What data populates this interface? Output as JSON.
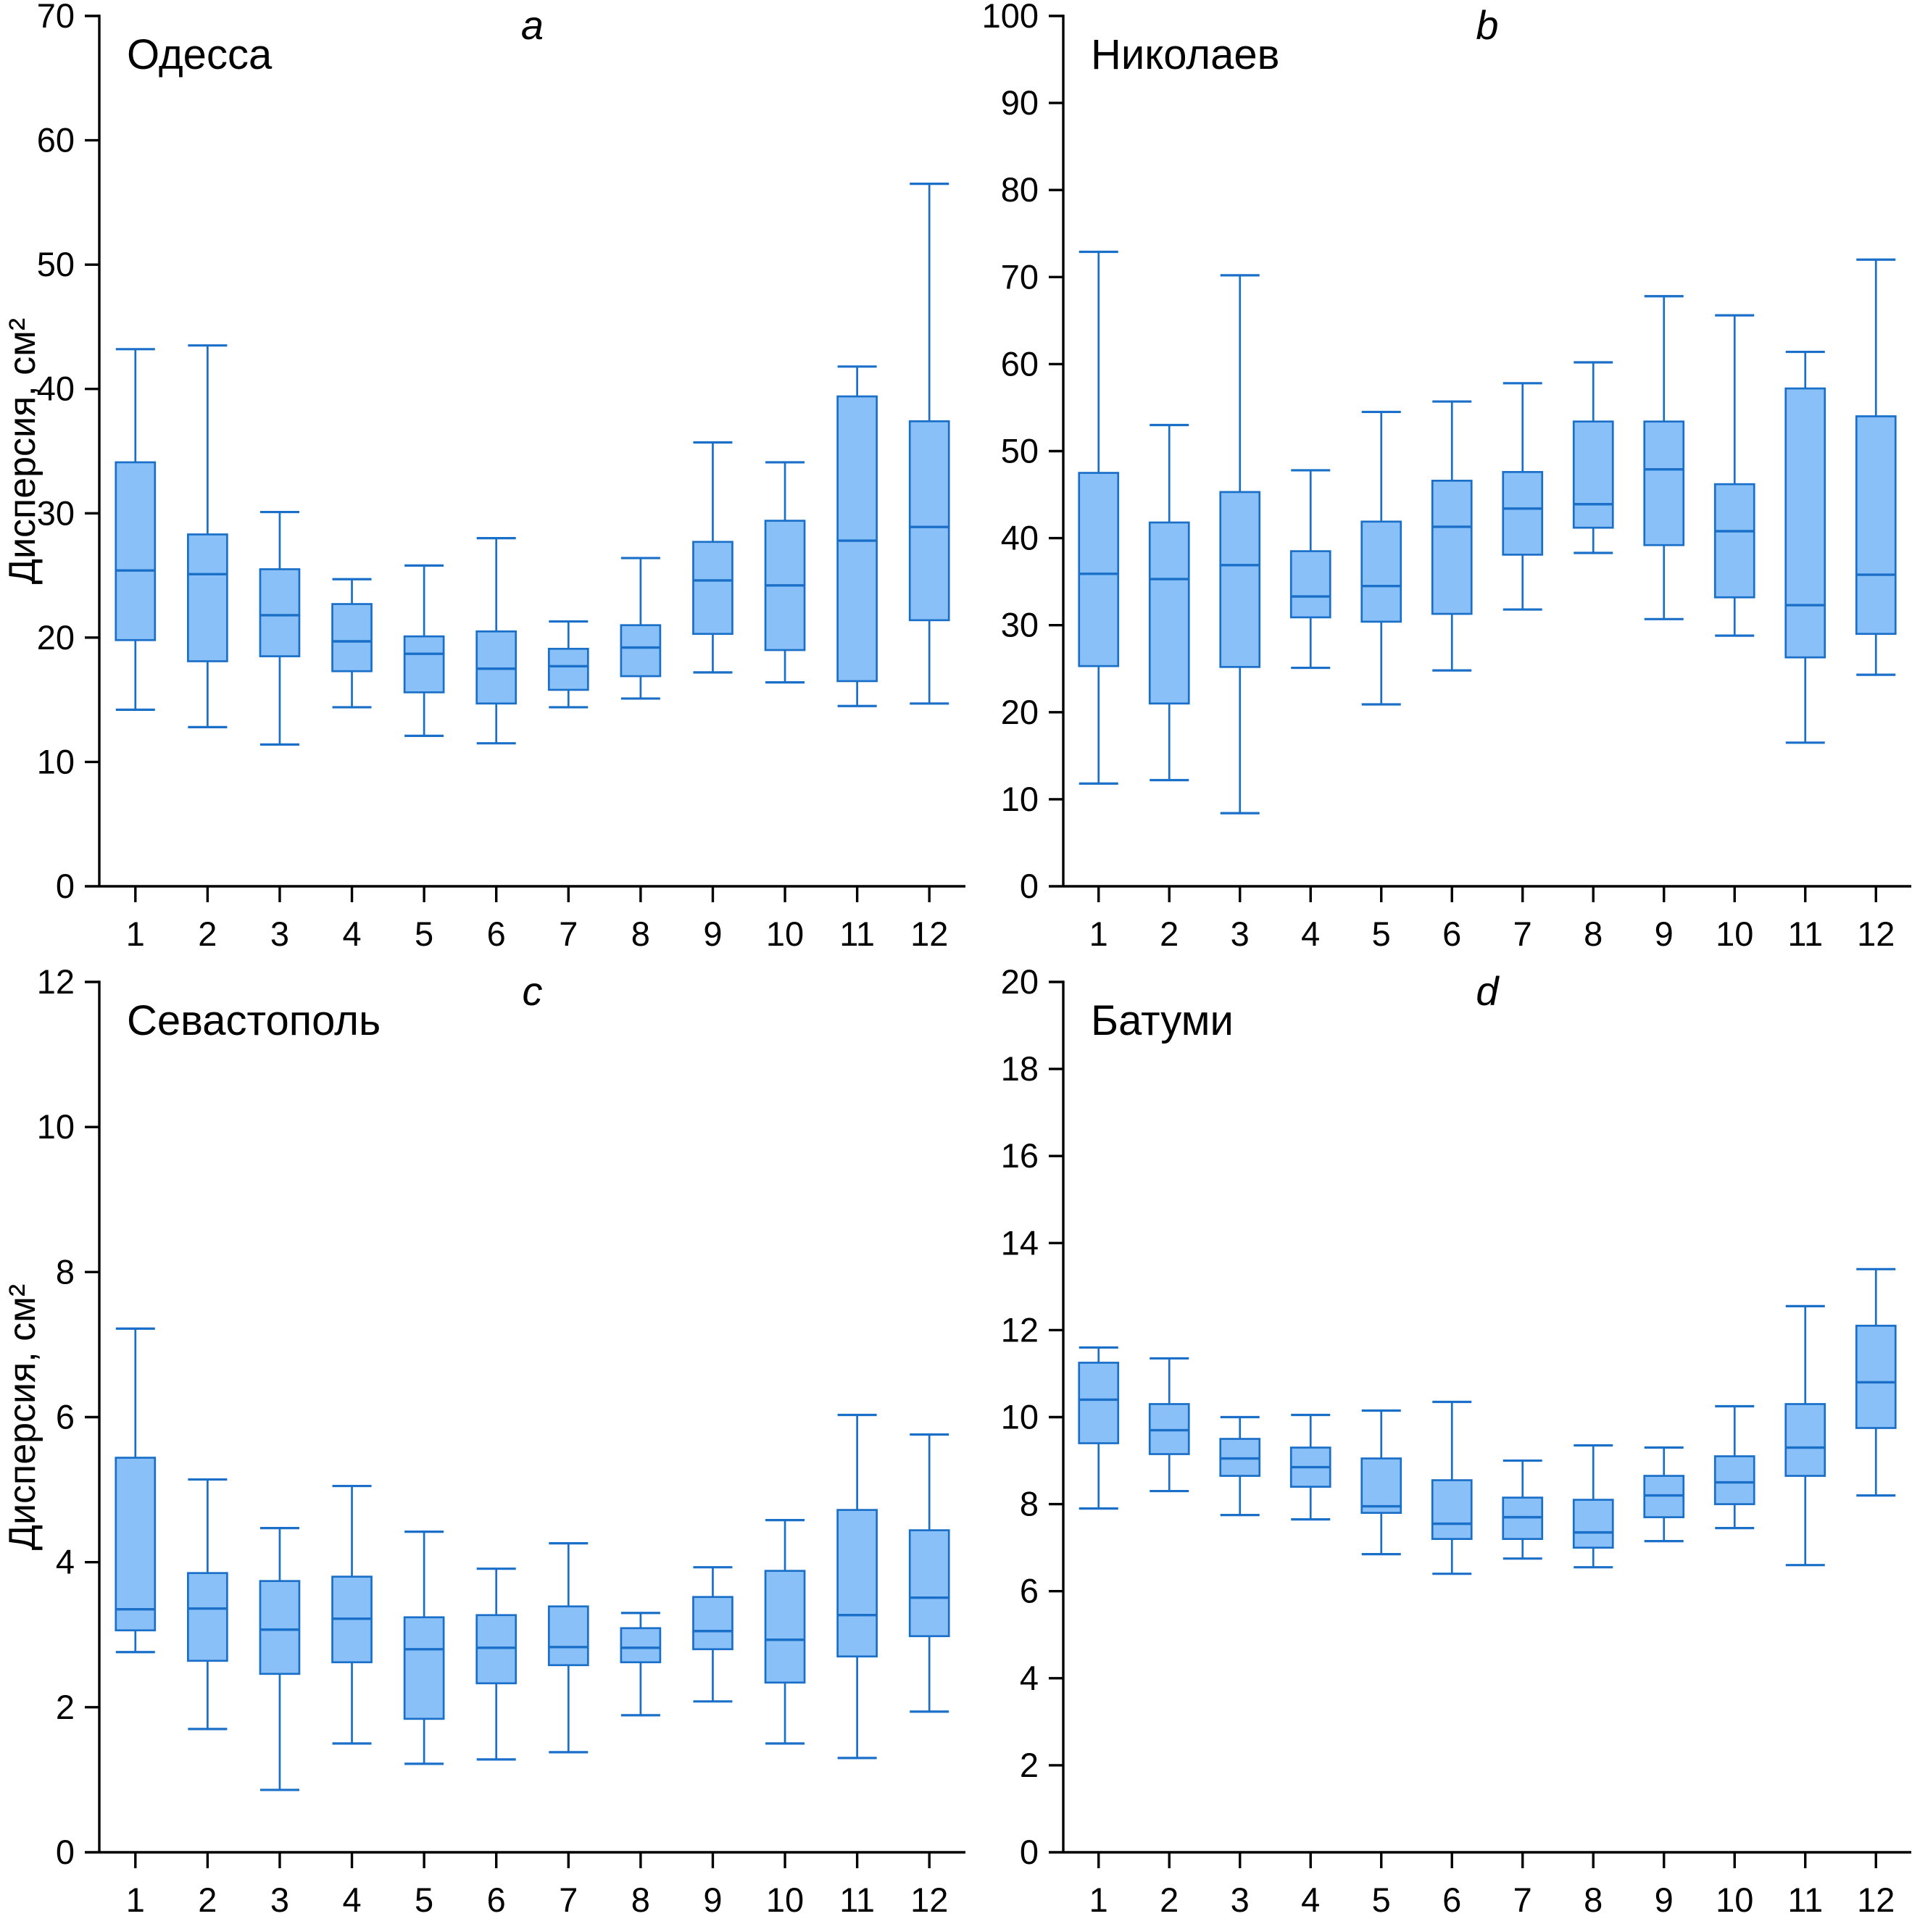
{
  "figure": {
    "y_axis_title": "Дисперсия, см²",
    "colors": {
      "box_fill": "#8ac0f8",
      "box_stroke": "#1a6fc8",
      "axis": "#000000",
      "background": "#ffffff"
    }
  },
  "chart_data": [
    {
      "type": "box",
      "panel_letter": "a",
      "title": "Одесса",
      "ylabel": "Дисперсия, см²",
      "xlabel": "",
      "ylim": [
        0,
        70
      ],
      "ytick_step": 10,
      "grid": false,
      "legend": false,
      "categories": [
        "1",
        "2",
        "3",
        "4",
        "5",
        "6",
        "7",
        "8",
        "9",
        "10",
        "11",
        "12"
      ],
      "boxes": [
        {
          "low": 14.2,
          "q1": 19.8,
          "median": 25.4,
          "q3": 34.1,
          "high": 43.2
        },
        {
          "low": 12.8,
          "q1": 18.1,
          "median": 25.1,
          "q3": 28.3,
          "high": 43.5
        },
        {
          "low": 11.4,
          "q1": 18.5,
          "median": 21.8,
          "q3": 25.5,
          "high": 30.1
        },
        {
          "low": 14.4,
          "q1": 17.3,
          "median": 19.7,
          "q3": 22.7,
          "high": 24.7
        },
        {
          "low": 12.1,
          "q1": 15.6,
          "median": 18.7,
          "q3": 20.1,
          "high": 25.8
        },
        {
          "low": 11.5,
          "q1": 14.7,
          "median": 17.5,
          "q3": 20.5,
          "high": 28.0
        },
        {
          "low": 14.4,
          "q1": 15.8,
          "median": 17.7,
          "q3": 19.1,
          "high": 21.3
        },
        {
          "low": 15.1,
          "q1": 16.9,
          "median": 19.2,
          "q3": 21.0,
          "high": 26.4
        },
        {
          "low": 17.2,
          "q1": 20.3,
          "median": 24.6,
          "q3": 27.7,
          "high": 35.7
        },
        {
          "low": 16.4,
          "q1": 19.0,
          "median": 24.2,
          "q3": 29.4,
          "high": 34.1
        },
        {
          "low": 14.5,
          "q1": 16.5,
          "median": 27.8,
          "q3": 39.4,
          "high": 41.8
        },
        {
          "low": 14.7,
          "q1": 21.4,
          "median": 28.9,
          "q3": 37.4,
          "high": 56.5
        }
      ]
    },
    {
      "type": "box",
      "panel_letter": "b",
      "title": "Николаев",
      "ylabel": "",
      "xlabel": "",
      "ylim": [
        0,
        100
      ],
      "ytick_step": 10,
      "grid": false,
      "legend": false,
      "categories": [
        "1",
        "2",
        "3",
        "4",
        "5",
        "6",
        "7",
        "8",
        "9",
        "10",
        "11",
        "12"
      ],
      "boxes": [
        {
          "low": 11.8,
          "q1": 25.3,
          "median": 35.9,
          "q3": 47.5,
          "high": 72.9
        },
        {
          "low": 12.2,
          "q1": 21.0,
          "median": 35.3,
          "q3": 41.8,
          "high": 53.0
        },
        {
          "low": 8.4,
          "q1": 25.2,
          "median": 36.9,
          "q3": 45.3,
          "high": 70.2
        },
        {
          "low": 25.1,
          "q1": 30.9,
          "median": 33.3,
          "q3": 38.5,
          "high": 47.8
        },
        {
          "low": 20.9,
          "q1": 30.4,
          "median": 34.5,
          "q3": 41.9,
          "high": 54.5
        },
        {
          "low": 24.8,
          "q1": 31.3,
          "median": 41.3,
          "q3": 46.6,
          "high": 55.7
        },
        {
          "low": 31.8,
          "q1": 38.1,
          "median": 43.4,
          "q3": 47.6,
          "high": 57.8
        },
        {
          "low": 38.3,
          "q1": 41.2,
          "median": 43.9,
          "q3": 53.4,
          "high": 60.2
        },
        {
          "low": 30.7,
          "q1": 39.2,
          "median": 47.9,
          "q3": 53.4,
          "high": 67.8
        },
        {
          "low": 28.8,
          "q1": 33.2,
          "median": 40.8,
          "q3": 46.2,
          "high": 65.6
        },
        {
          "low": 16.5,
          "q1": 26.3,
          "median": 32.3,
          "q3": 57.2,
          "high": 61.4
        },
        {
          "low": 24.3,
          "q1": 29.0,
          "median": 35.8,
          "q3": 54.0,
          "high": 72.0
        }
      ]
    },
    {
      "type": "box",
      "panel_letter": "c",
      "title": "Севастополь",
      "ylabel": "Дисперсия, см²",
      "xlabel": "",
      "ylim": [
        0,
        12
      ],
      "ytick_step": 2,
      "grid": false,
      "legend": false,
      "categories": [
        "1",
        "2",
        "3",
        "4",
        "5",
        "6",
        "7",
        "8",
        "9",
        "10",
        "11",
        "12"
      ],
      "boxes": [
        {
          "low": 2.76,
          "q1": 3.06,
          "median": 3.35,
          "q3": 5.44,
          "high": 7.22
        },
        {
          "low": 1.7,
          "q1": 2.64,
          "median": 3.36,
          "q3": 3.85,
          "high": 5.14
        },
        {
          "low": 0.86,
          "q1": 2.46,
          "median": 3.07,
          "q3": 3.74,
          "high": 4.47
        },
        {
          "low": 1.5,
          "q1": 2.62,
          "median": 3.22,
          "q3": 3.8,
          "high": 5.05
        },
        {
          "low": 1.22,
          "q1": 1.84,
          "median": 2.8,
          "q3": 3.24,
          "high": 4.42
        },
        {
          "low": 1.28,
          "q1": 2.33,
          "median": 2.82,
          "q3": 3.27,
          "high": 3.91
        },
        {
          "low": 1.38,
          "q1": 2.58,
          "median": 2.83,
          "q3": 3.39,
          "high": 4.26
        },
        {
          "low": 1.89,
          "q1": 2.62,
          "median": 2.82,
          "q3": 3.09,
          "high": 3.3
        },
        {
          "low": 2.08,
          "q1": 2.8,
          "median": 3.05,
          "q3": 3.52,
          "high": 3.93
        },
        {
          "low": 1.5,
          "q1": 2.34,
          "median": 2.93,
          "q3": 3.88,
          "high": 4.58
        },
        {
          "low": 1.3,
          "q1": 2.7,
          "median": 3.27,
          "q3": 4.72,
          "high": 6.03
        },
        {
          "low": 1.94,
          "q1": 2.98,
          "median": 3.51,
          "q3": 4.44,
          "high": 5.76
        }
      ]
    },
    {
      "type": "box",
      "panel_letter": "d",
      "title": "Батуми",
      "ylabel": "",
      "xlabel": "",
      "ylim": [
        0,
        20
      ],
      "ytick_step": 2,
      "grid": false,
      "legend": false,
      "categories": [
        "1",
        "2",
        "3",
        "4",
        "5",
        "6",
        "7",
        "8",
        "9",
        "10",
        "11",
        "12"
      ],
      "boxes": [
        {
          "low": 7.9,
          "q1": 9.4,
          "median": 10.4,
          "q3": 11.25,
          "high": 11.6
        },
        {
          "low": 8.3,
          "q1": 9.15,
          "median": 9.7,
          "q3": 10.3,
          "high": 11.35
        },
        {
          "low": 7.75,
          "q1": 8.65,
          "median": 9.05,
          "q3": 9.5,
          "high": 10.0
        },
        {
          "low": 7.65,
          "q1": 8.4,
          "median": 8.85,
          "q3": 9.3,
          "high": 10.05
        },
        {
          "low": 6.85,
          "q1": 7.8,
          "median": 7.95,
          "q3": 9.05,
          "high": 10.15
        },
        {
          "low": 6.4,
          "q1": 7.2,
          "median": 7.55,
          "q3": 8.55,
          "high": 10.35
        },
        {
          "low": 6.75,
          "q1": 7.2,
          "median": 7.7,
          "q3": 8.15,
          "high": 9.0
        },
        {
          "low": 6.55,
          "q1": 7.0,
          "median": 7.35,
          "q3": 8.1,
          "high": 9.35
        },
        {
          "low": 7.15,
          "q1": 7.7,
          "median": 8.2,
          "q3": 8.65,
          "high": 9.3
        },
        {
          "low": 7.45,
          "q1": 8.0,
          "median": 8.5,
          "q3": 9.1,
          "high": 10.25
        },
        {
          "low": 6.6,
          "q1": 8.65,
          "median": 9.3,
          "q3": 10.3,
          "high": 12.55
        },
        {
          "low": 8.2,
          "q1": 9.75,
          "median": 10.8,
          "q3": 12.1,
          "high": 13.4
        }
      ]
    }
  ]
}
